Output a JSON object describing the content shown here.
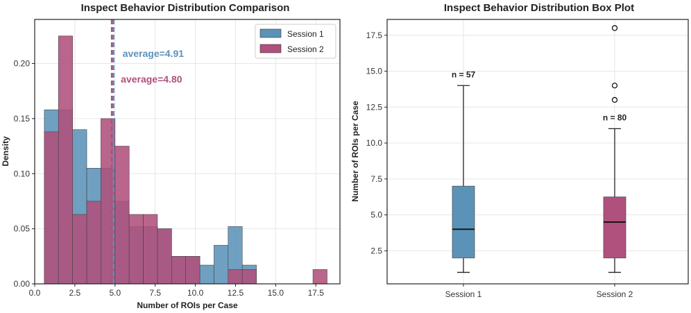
{
  "chart_data": [
    {
      "type": "histogram",
      "title": "Inspect Behavior Distribution Comparison",
      "xlabel": "Number of ROIs per Case",
      "ylabel": "Density",
      "xlim": [
        0,
        19
      ],
      "ylim": [
        0,
        0.24
      ],
      "xticks": [
        "0.0",
        "2.5",
        "5.0",
        "7.5",
        "10.0",
        "12.5",
        "15.0",
        "17.5"
      ],
      "yticks": [
        "0.00",
        "0.05",
        "0.10",
        "0.15",
        "0.20"
      ],
      "bin_edges": [
        0.6,
        1.48,
        2.36,
        3.24,
        4.12,
        5.0,
        5.88,
        6.76,
        7.64,
        8.52,
        9.4,
        10.28,
        11.16,
        12.04,
        12.92,
        13.8,
        14.68,
        15.56,
        16.44,
        17.32,
        18.2
      ],
      "series": [
        {
          "name": "Session 1",
          "color": "#5b93b8",
          "values": [
            0.158,
            0.158,
            0.14,
            0.105,
            0.105,
            0.075,
            0.052,
            0.052,
            0.05,
            0.025,
            0.025,
            0.017,
            0.035,
            0.052,
            0.017,
            0,
            0,
            0,
            0,
            0
          ],
          "mean": 4.91,
          "mean_label": "average=4.91"
        },
        {
          "name": "Session 2",
          "color": "#b0507c",
          "values": [
            0.138,
            0.225,
            0.063,
            0.075,
            0.15,
            0.125,
            0.063,
            0.063,
            0.05,
            0.025,
            0.025,
            0,
            0,
            0.013,
            0.013,
            0,
            0,
            0,
            0,
            0.013
          ],
          "mean": 4.8,
          "mean_label": "average=4.80"
        }
      ],
      "legend": {
        "position": "top-right",
        "entries": [
          "Session 1",
          "Session 2"
        ]
      }
    },
    {
      "type": "box",
      "title": "Inspect Behavior Distribution Box Plot",
      "xlabel": "",
      "ylabel": "Number of ROIs per Case",
      "ylim": [
        0.2,
        18.6
      ],
      "yticks": [
        "2.5",
        "5.0",
        "7.5",
        "10.0",
        "12.5",
        "15.0",
        "17.5"
      ],
      "categories": [
        "Session 1",
        "Session 2"
      ],
      "boxes": [
        {
          "name": "Session 1",
          "color": "#5b93b8",
          "whislo": 1,
          "q1": 2,
          "med": 4,
          "q3": 7,
          "whishi": 14,
          "fliers": [],
          "n_label": "n = 57"
        },
        {
          "name": "Session 2",
          "color": "#b0507c",
          "whislo": 1,
          "q1": 2,
          "med": 4.5,
          "q3": 6.25,
          "whishi": 11,
          "fliers": [
            13,
            14,
            18
          ],
          "n_label": "n = 80"
        }
      ]
    }
  ]
}
